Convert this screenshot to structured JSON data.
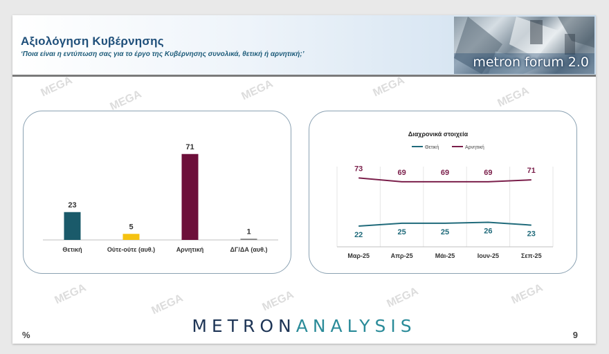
{
  "header": {
    "title": "Αξιολόγηση Κυβέρνησης",
    "subtitle": "‘Ποια είναι η εντύπωση σας για το έργο της Κυβέρνησης συνολικά, θετική ή αρνητική;’",
    "logo_text": "metron forum 2.0"
  },
  "watermark": "MEGA",
  "footer": {
    "brand_part1": "METRON",
    "brand_part2": "ANALYSIS",
    "percent_sign": "%",
    "page_number": "9"
  },
  "chart_data": [
    {
      "type": "bar",
      "title": "",
      "categories": [
        "Θετική",
        "Ούτε-ούτε (αυθ.)",
        "Αρνητική",
        "ΔΓ/ΔΑ (αυθ.)"
      ],
      "values": [
        23,
        5,
        71,
        1
      ],
      "colors": [
        "#1a5a6a",
        "#f5c211",
        "#6d0f3a",
        "#7f7f7f"
      ],
      "ylim": [
        0,
        80
      ],
      "grid": false,
      "legend": "none"
    },
    {
      "type": "line",
      "title": "Διαχρονικά στοιχεία",
      "categories": [
        "Μαρ-25",
        "Απρ-25",
        "Μάι-25",
        "Ιουν-25",
        "Σεπ-25"
      ],
      "series": [
        {
          "name": "Θετική",
          "values": [
            22,
            25,
            25,
            26,
            23
          ],
          "color": "#1f6a7a"
        },
        {
          "name": "Αρνητική",
          "values": [
            73,
            69,
            69,
            69,
            71
          ],
          "color": "#7a1e4a"
        }
      ],
      "ylim": [
        0,
        85
      ],
      "grid": true,
      "legend": "top"
    }
  ]
}
